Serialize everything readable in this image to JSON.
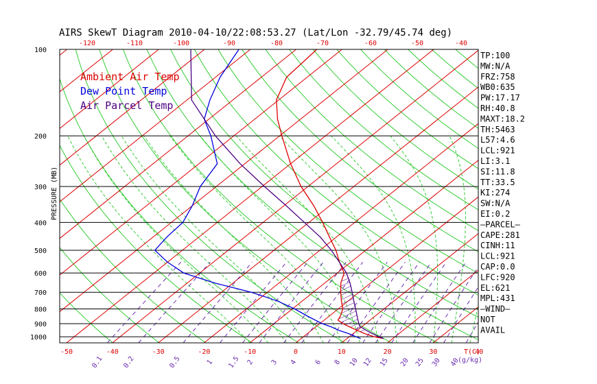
{
  "chart_data": {
    "type": "line",
    "title": "AIRS SkewT Diagram 2010-04-10/22:08:53.27 (Lat/Lon -32.79/45.74 deg)",
    "ylabel": "PRESSURE (MB)",
    "y_scale": "log",
    "ylim": [
      1050,
      100
    ],
    "pressure_levels": [
      100,
      200,
      300,
      400,
      500,
      600,
      700,
      800,
      900,
      1000
    ],
    "top_temp_ticks": [
      "-120",
      "-110",
      "-100",
      "-90",
      "-80",
      "-70",
      "-60",
      "-50",
      "-40"
    ],
    "bottom_temp_ticks": [
      "-50",
      "-40",
      "-30",
      "-20",
      "-10",
      "0",
      "10",
      "20",
      "30",
      "40"
    ],
    "bottom_temp_unit": "T(C)",
    "mixing_ratio_ticks": [
      "0.1",
      "0.2",
      "0.5",
      "1",
      "1.5",
      "2",
      "3",
      "4",
      "6",
      "8",
      "10",
      "12",
      "15",
      "20",
      "25",
      "30",
      "40"
    ],
    "mixing_ratio_unit": "(g/kg)",
    "legend": [
      {
        "label": "Ambient Air Temp",
        "color": "#dd0000"
      },
      {
        "label": "Dew Point Temp",
        "color": "#0000dd"
      },
      {
        "label": "Air Parcel Temp",
        "color": "#4b0082"
      }
    ],
    "series": [
      {
        "name": "Ambient Air Temp",
        "color": "#dd0000",
        "p": [
          1015,
          1000,
          975,
          950,
          925,
          900,
          875,
          850,
          800,
          750,
          700,
          650,
          600,
          550,
          500,
          450,
          400,
          350,
          300,
          250,
          200,
          175,
          150,
          125,
          100
        ],
        "t": [
          18.0,
          15.5,
          12.5,
          10.0,
          7.5,
          5.0,
          3.0,
          2.5,
          1.0,
          -1.5,
          -4.0,
          -6.5,
          -8.5,
          -12.5,
          -16.5,
          -21.5,
          -27.0,
          -33.5,
          -41.5,
          -50.0,
          -59.5,
          -65.0,
          -70.5,
          -74.5,
          -75.5
        ]
      },
      {
        "name": "Dew Point Temp",
        "color": "#0000dd",
        "p": [
          1015,
          1000,
          975,
          950,
          925,
          900,
          850,
          800,
          750,
          700,
          650,
          600,
          550,
          500,
          450,
          400,
          350,
          300,
          250,
          200,
          175,
          150,
          125,
          100
        ],
        "t": [
          13.0,
          11.5,
          9.0,
          6.0,
          3.5,
          0.5,
          -4.5,
          -9.5,
          -15.5,
          -23.5,
          -34.0,
          -43.5,
          -50.0,
          -56.0,
          -57.0,
          -57.5,
          -60.0,
          -63.5,
          -66.0,
          -75.0,
          -81.0,
          -85.0,
          -89.0,
          -92.5
        ]
      },
      {
        "name": "Air Parcel Temp",
        "color": "#4b0082",
        "p": [
          1015,
          1000,
          975,
          950,
          921,
          900,
          850,
          800,
          750,
          700,
          650,
          600,
          550,
          500,
          450,
          400,
          350,
          300,
          250,
          200,
          150,
          100
        ],
        "t": [
          18.0,
          16.5,
          14.2,
          12.0,
          9.5,
          8.5,
          6.2,
          3.8,
          1.2,
          -1.5,
          -4.5,
          -8.0,
          -12.5,
          -17.5,
          -23.5,
          -31.0,
          -39.5,
          -49.5,
          -61.0,
          -74.0,
          -89.0,
          -103.0
        ]
      }
    ],
    "stats": [
      "TP:100",
      "MW:N/A",
      "FRZ:758",
      "WB0:635",
      "PW:17.17",
      "RH:40.8",
      "MAXT:18.2",
      "TH:5463",
      "L57:4.6",
      "LCL:921",
      "LI:3.1",
      "SI:11.8",
      "TT:33.5",
      "KI:274",
      "SW:N/A",
      "EI:0.2",
      "—PARCEL—",
      "CAPE:281",
      "CINH:11",
      "LCL:921",
      "CAP:0.0",
      "LFC:920",
      "EL:621",
      "MPL:431",
      "—WIND—",
      "NOT",
      "AVAIL"
    ]
  }
}
